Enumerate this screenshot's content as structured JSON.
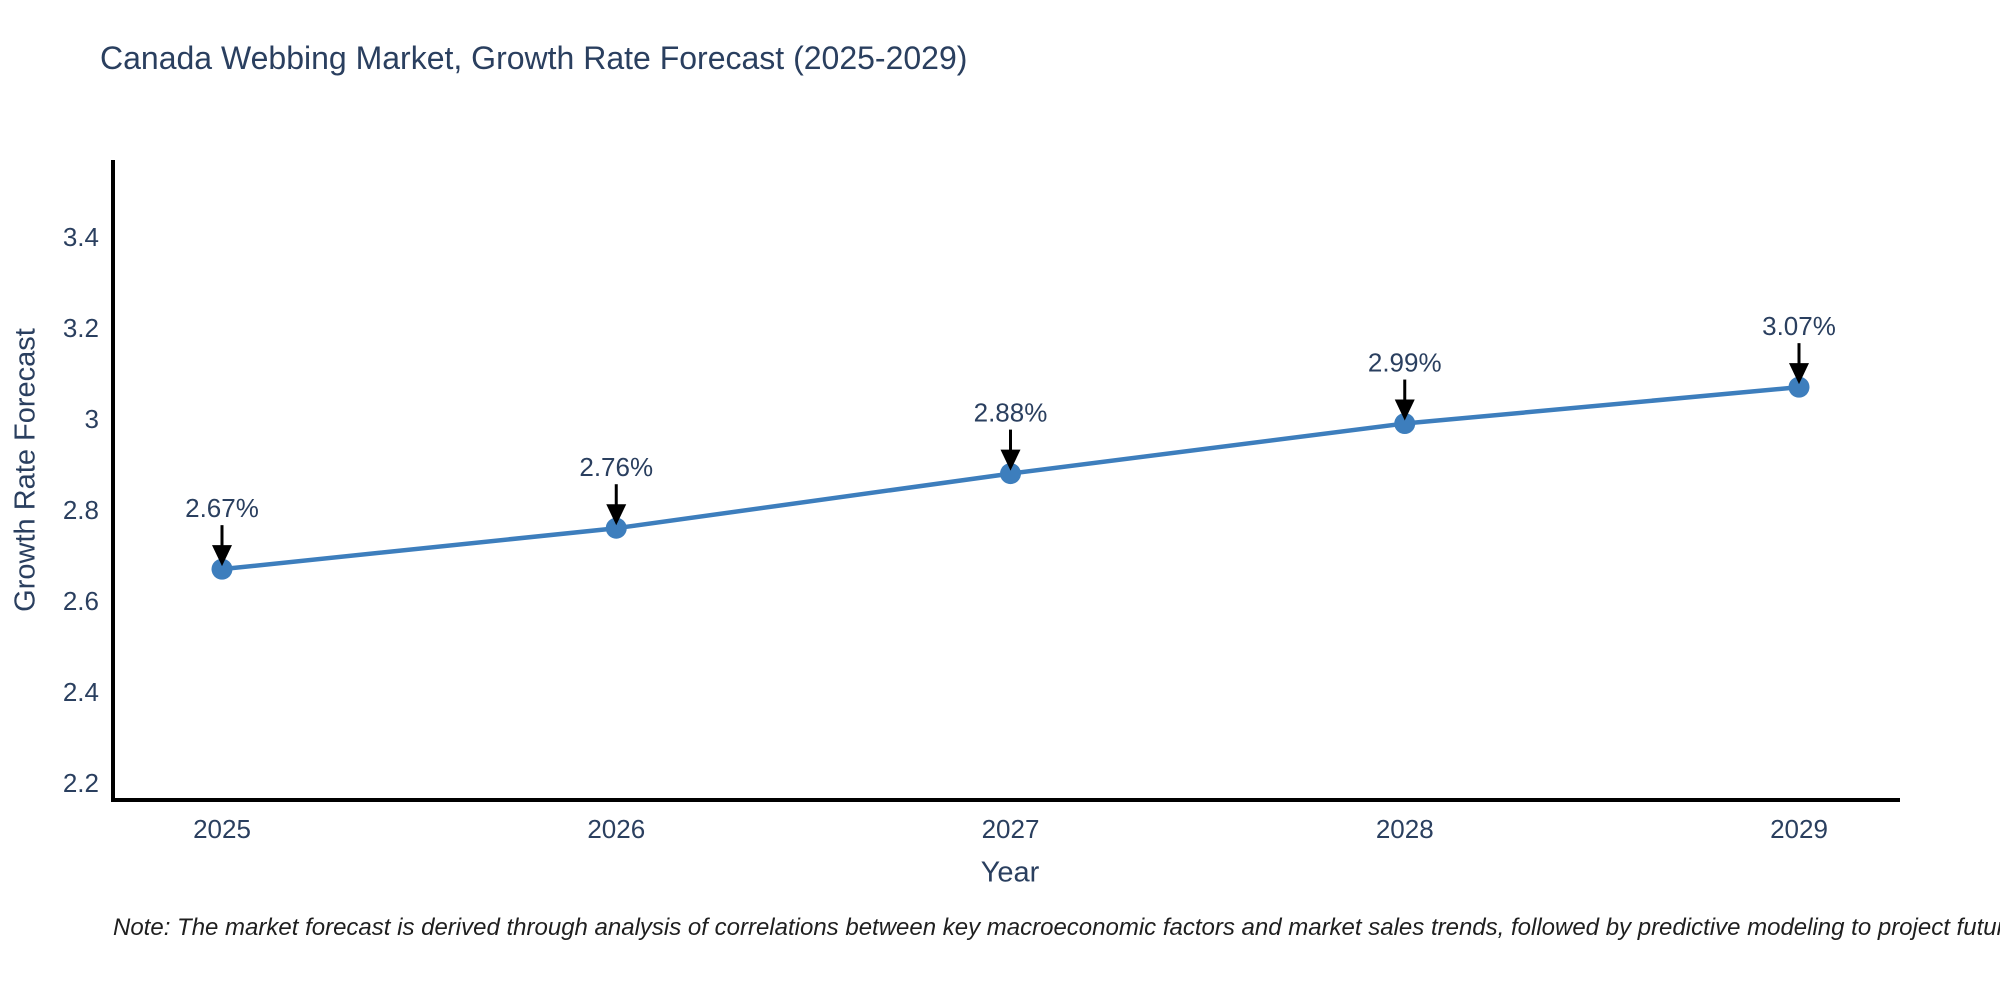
{
  "note": "Note: The market forecast is derived through analysis of correlations between key macroeconomic factors and market sales trends, followed by predictive modeling to project future sales",
  "chart_data": {
    "type": "line",
    "title": "Canada Webbing Market, Growth Rate Forecast (2025-2029)",
    "xlabel": "Year",
    "ylabel": "Growth Rate Forecast",
    "categories": [
      "2025",
      "2026",
      "2027",
      "2028",
      "2029"
    ],
    "values": [
      2.67,
      2.76,
      2.88,
      2.99,
      3.07
    ],
    "point_labels": [
      "2.67%",
      "2.76%",
      "2.88%",
      "2.99%",
      "3.07%"
    ],
    "yticks": [
      2.2,
      2.4,
      2.6,
      2.8,
      3.0,
      3.2,
      3.4
    ],
    "ytick_labels": [
      "2.2",
      "2.4",
      "2.6",
      "2.8",
      "3",
      "3.2",
      "3.4"
    ],
    "ylim": [
      2.16,
      3.57
    ],
    "grid": false,
    "legend": "none",
    "annotation_style": "value label above each point with downward black arrow",
    "colors": {
      "line": "#3d7ebd",
      "marker": "#3d7ebd",
      "axis": "#000000",
      "text": "#2a3f5f",
      "arrow": "#000000",
      "note_text": "#1f1f1f",
      "background": "#ffffff"
    }
  }
}
